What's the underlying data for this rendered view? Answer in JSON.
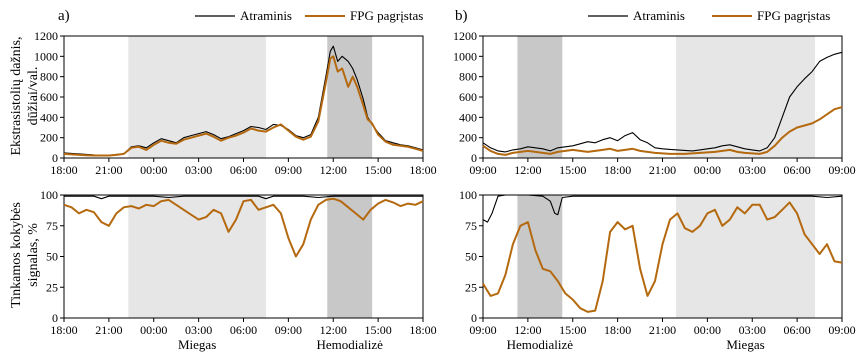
{
  "figure": {
    "ylabel_top": [
      "Ekstrasistolių dažnis,",
      "dūžiai/val."
    ],
    "ylabel_bottom": [
      "Tinkamos kokybės",
      "signalas, %"
    ]
  },
  "colors": {
    "reference": "#000000",
    "ppg": "#b5690f",
    "sleep": "#e6e6e6",
    "dialysis": "#c8c8c8"
  },
  "chart_data": [
    {
      "id": "a-top",
      "panel": "a)",
      "type": "line",
      "x_ticks": [
        "18:00",
        "21:00",
        "00:00",
        "03:00",
        "06:00",
        "09:00",
        "12:00",
        "15:00",
        "18:00"
      ],
      "x_range_hours": [
        0,
        24
      ],
      "ylim": [
        0,
        1200
      ],
      "y_ticks": [
        "0",
        "200",
        "400",
        "600",
        "800",
        "1000",
        "1200"
      ],
      "bands": [
        {
          "label": "Miegas",
          "from": 4.3,
          "to": 13.5,
          "kind": "sleep"
        },
        {
          "label": "Hemodializė",
          "from": 17.6,
          "to": 20.6,
          "kind": "dialysis"
        }
      ],
      "series": [
        {
          "name": "Atraminis",
          "kind": "reference",
          "x": [
            0,
            0.5,
            1,
            1.5,
            2,
            2.5,
            3,
            3.5,
            4,
            4.5,
            5,
            5.5,
            6,
            6.5,
            7,
            7.5,
            8,
            8.5,
            9,
            9.5,
            10,
            10.5,
            11,
            11.5,
            12,
            12.5,
            13,
            13.5,
            14,
            14.5,
            15,
            15.5,
            16,
            16.5,
            17,
            17.5,
            17.8,
            18,
            18.3,
            18.6,
            19,
            19.3,
            19.6,
            20,
            20.3,
            20.6,
            21,
            21.5,
            22,
            22.5,
            23,
            23.5,
            24
          ],
          "y": [
            50,
            45,
            40,
            35,
            30,
            25,
            25,
            35,
            40,
            110,
            120,
            100,
            150,
            190,
            170,
            150,
            200,
            220,
            240,
            260,
            230,
            190,
            210,
            240,
            270,
            310,
            300,
            280,
            330,
            320,
            280,
            220,
            200,
            230,
            400,
            800,
            1050,
            1100,
            950,
            1000,
            950,
            880,
            770,
            580,
            400,
            330,
            250,
            170,
            150,
            130,
            120,
            100,
            80
          ]
        },
        {
          "name": "FPG pagrįstas",
          "kind": "ppg",
          "x": [
            0,
            0.5,
            1,
            1.5,
            2,
            2.5,
            3,
            3.5,
            4,
            4.5,
            5,
            5.5,
            6,
            6.5,
            7,
            7.5,
            8,
            8.5,
            9,
            9.5,
            10,
            10.5,
            11,
            11.5,
            12,
            12.5,
            13,
            13.5,
            14,
            14.5,
            15,
            15.5,
            16,
            16.5,
            17,
            17.5,
            17.8,
            18,
            18.3,
            18.6,
            19,
            19.3,
            19.6,
            20,
            20.3,
            20.6,
            21,
            21.5,
            22,
            22.5,
            23,
            23.5,
            24
          ],
          "y": [
            40,
            35,
            30,
            28,
            25,
            25,
            25,
            30,
            40,
            100,
            110,
            80,
            130,
            170,
            150,
            140,
            180,
            200,
            220,
            240,
            210,
            170,
            200,
            220,
            250,
            290,
            270,
            260,
            300,
            330,
            270,
            210,
            180,
            210,
            360,
            740,
            980,
            1000,
            850,
            880,
            700,
            800,
            700,
            520,
            380,
            340,
            230,
            160,
            130,
            120,
            110,
            90,
            70
          ]
        }
      ]
    },
    {
      "id": "a-bottom",
      "panel": "",
      "type": "line",
      "x_ticks": [
        "18:00",
        "21:00",
        "00:00",
        "03:00",
        "06:00",
        "09:00",
        "12:00",
        "15:00",
        "18:00"
      ],
      "x_range_hours": [
        0,
        24
      ],
      "ylim": [
        0,
        100
      ],
      "y_ticks": [
        "0",
        "25",
        "50",
        "75",
        "100"
      ],
      "band_labels": [
        "Miegas",
        "Hemodializė"
      ],
      "bands": [
        {
          "label": "Miegas",
          "from": 4.3,
          "to": 13.5,
          "kind": "sleep"
        },
        {
          "label": "Hemodializė",
          "from": 17.6,
          "to": 20.6,
          "kind": "dialysis"
        }
      ],
      "series": [
        {
          "name": "Atraminis",
          "kind": "reference",
          "x": [
            0,
            2,
            2.5,
            3,
            4,
            6,
            7,
            8,
            9,
            10,
            11,
            12,
            13,
            13.5,
            14,
            15,
            16,
            17,
            18,
            19,
            20,
            21,
            22,
            23,
            24
          ],
          "y": [
            99,
            99,
            97,
            99,
            99,
            99,
            98,
            99,
            99,
            99,
            99,
            99,
            99,
            97,
            99,
            99,
            99,
            98,
            99,
            99,
            99,
            99,
            99,
            99,
            99
          ]
        },
        {
          "name": "FPG pagrįstas",
          "kind": "ppg",
          "x": [
            0,
            0.5,
            1,
            1.5,
            2,
            2.5,
            3,
            3.5,
            4,
            4.5,
            5,
            5.5,
            6,
            6.5,
            7,
            7.5,
            8,
            8.5,
            9,
            9.5,
            10,
            10.5,
            11,
            11.5,
            12,
            12.5,
            13,
            13.5,
            14,
            14.5,
            15,
            15.5,
            16,
            16.5,
            17,
            17.5,
            18,
            18.5,
            19,
            19.5,
            20,
            20.5,
            21,
            21.5,
            22,
            22.5,
            23,
            23.5,
            24
          ],
          "y": [
            92,
            90,
            85,
            88,
            86,
            78,
            75,
            85,
            90,
            91,
            89,
            92,
            91,
            95,
            96,
            92,
            88,
            84,
            80,
            82,
            88,
            85,
            70,
            80,
            95,
            96,
            88,
            90,
            92,
            85,
            65,
            50,
            60,
            80,
            92,
            96,
            97,
            95,
            90,
            85,
            80,
            88,
            93,
            96,
            94,
            91,
            93,
            92,
            95
          ]
        }
      ]
    },
    {
      "id": "b-top",
      "panel": "b)",
      "type": "line",
      "x_ticks": [
        "09:00",
        "12:00",
        "15:00",
        "18:00",
        "21:00",
        "00:00",
        "03:00",
        "06:00",
        "09:00"
      ],
      "x_range_hours": [
        0,
        24
      ],
      "ylim": [
        0,
        1200
      ],
      "y_ticks": [
        "0",
        "200",
        "400",
        "600",
        "800",
        "1000",
        "1200"
      ],
      "bands": [
        {
          "label": "Hemodializė",
          "from": 2.3,
          "to": 5.3,
          "kind": "dialysis"
        },
        {
          "label": "Miegas",
          "from": 12.9,
          "to": 22.2,
          "kind": "sleep"
        }
      ],
      "series": [
        {
          "name": "Atraminis",
          "kind": "reference",
          "x": [
            0,
            0.5,
            1,
            1.5,
            2,
            2.5,
            3,
            3.5,
            4,
            4.5,
            5,
            5.5,
            6,
            6.5,
            7,
            7.5,
            8,
            8.5,
            9,
            9.5,
            10,
            10.5,
            11,
            11.5,
            12,
            12.5,
            13,
            13.5,
            14,
            14.5,
            15,
            15.5,
            16,
            16.5,
            17,
            17.5,
            18,
            18.5,
            19,
            19.5,
            20,
            20.5,
            21,
            21.5,
            22,
            22.5,
            23,
            23.5,
            24
          ],
          "y": [
            150,
            100,
            70,
            60,
            80,
            90,
            110,
            100,
            90,
            70,
            100,
            110,
            120,
            140,
            160,
            150,
            180,
            200,
            170,
            220,
            250,
            180,
            150,
            100,
            90,
            85,
            80,
            75,
            70,
            80,
            90,
            100,
            120,
            130,
            110,
            90,
            80,
            70,
            100,
            200,
            400,
            600,
            700,
            780,
            850,
            950,
            990,
            1020,
            1040
          ]
        },
        {
          "name": "FPG pagrįstas",
          "kind": "ppg",
          "x": [
            0,
            0.5,
            1,
            1.5,
            2,
            2.5,
            3,
            3.5,
            4,
            4.5,
            5,
            5.5,
            6,
            6.5,
            7,
            7.5,
            8,
            8.5,
            9,
            9.5,
            10,
            10.5,
            11,
            11.5,
            12,
            12.5,
            13,
            13.5,
            14,
            14.5,
            15,
            15.5,
            16,
            16.5,
            17,
            17.5,
            18,
            18.5,
            19,
            19.5,
            20,
            20.5,
            21,
            21.5,
            22,
            22.5,
            23,
            23.5,
            24
          ],
          "y": [
            120,
            70,
            40,
            30,
            50,
            60,
            70,
            60,
            50,
            40,
            60,
            70,
            80,
            70,
            60,
            70,
            80,
            90,
            70,
            80,
            90,
            70,
            60,
            50,
            45,
            40,
            40,
            40,
            45,
            50,
            55,
            60,
            70,
            80,
            60,
            50,
            45,
            40,
            60,
            120,
            200,
            260,
            300,
            320,
            340,
            380,
            430,
            480,
            500
          ]
        }
      ]
    },
    {
      "id": "b-bottom",
      "panel": "",
      "type": "line",
      "x_ticks": [
        "09:00",
        "12:00",
        "15:00",
        "18:00",
        "21:00",
        "00:00",
        "03:00",
        "06:00",
        "09:00"
      ],
      "x_range_hours": [
        0,
        24
      ],
      "ylim": [
        0,
        100
      ],
      "y_ticks": [
        "0",
        "25",
        "50",
        "75",
        "100"
      ],
      "band_labels": [
        "Hemodializė",
        "Miegas"
      ],
      "bands": [
        {
          "label": "Hemodializė",
          "from": 2.3,
          "to": 5.3,
          "kind": "dialysis"
        },
        {
          "label": "Miegas",
          "from": 12.9,
          "to": 22.2,
          "kind": "sleep"
        }
      ],
      "series": [
        {
          "name": "Atraminis",
          "kind": "reference",
          "x": [
            0,
            0.3,
            0.6,
            1,
            1.5,
            2,
            3,
            4,
            4.5,
            4.8,
            5,
            5.3,
            6,
            8,
            10,
            12,
            14,
            16,
            18,
            20,
            22,
            23,
            24
          ],
          "y": [
            80,
            78,
            85,
            99,
            100,
            100,
            100,
            99,
            95,
            85,
            84,
            98,
            99,
            99,
            99,
            99,
            99,
            99,
            99,
            99,
            99,
            98,
            99
          ]
        },
        {
          "name": "FPG pagrįstas",
          "kind": "ppg",
          "x": [
            0,
            0.5,
            1,
            1.5,
            2,
            2.5,
            3,
            3.5,
            4,
            4.5,
            5,
            5.5,
            6,
            6.5,
            7,
            7.5,
            8,
            8.5,
            9,
            9.5,
            10,
            10.5,
            11,
            11.5,
            12,
            12.5,
            13,
            13.5,
            14,
            14.5,
            15,
            15.5,
            16,
            16.5,
            17,
            17.5,
            18,
            18.5,
            19,
            19.5,
            20,
            20.5,
            21,
            21.5,
            22,
            22.5,
            23,
            23.5,
            24
          ],
          "y": [
            28,
            18,
            20,
            35,
            60,
            75,
            78,
            55,
            40,
            38,
            30,
            20,
            15,
            8,
            5,
            6,
            30,
            70,
            78,
            72,
            75,
            40,
            18,
            30,
            60,
            80,
            85,
            73,
            70,
            75,
            85,
            88,
            75,
            80,
            90,
            85,
            92,
            92,
            80,
            82,
            88,
            94,
            85,
            68,
            60,
            52,
            60,
            46,
            45
          ]
        }
      ]
    }
  ]
}
